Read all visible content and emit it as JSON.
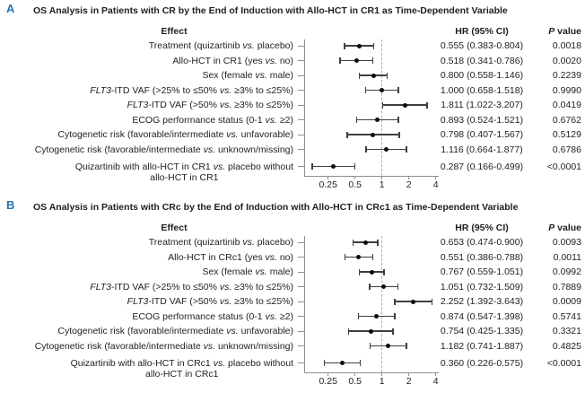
{
  "figure": {
    "background": "#ffffff",
    "text_color": "#1f1f1f",
    "panel_letter_color": "#2272b5",
    "axis_color": "#909090",
    "reference_line_color": "#b0b0b0",
    "errorbar_color": "#3f3f3f",
    "point_color": "#0d0d0d"
  },
  "chart_data": [
    {
      "type": "forest",
      "panel": "A",
      "title": "OS Analysis in Patients with CR by the End of Induction with Allo-HCT in CR1 as Time-Dependent Variable",
      "columns": {
        "effect": "Effect",
        "hr": "HR (95% CI)",
        "p_italic": "P",
        "p_rest": " value"
      },
      "x_scale": "log2",
      "x_ticks": [
        0.25,
        0.5,
        1,
        2,
        4
      ],
      "x_tick_labels": [
        "0.25",
        "0.5",
        "1",
        "2",
        "4"
      ],
      "reference_line": 1,
      "italic_tokens": [
        "FLT3",
        "vs."
      ],
      "rows": [
        {
          "effect": "Treatment (quizartinib vs. placebo)",
          "hr": 0.555,
          "ci_low": 0.383,
          "ci_high": 0.804,
          "hr_text": "0.555 (0.383-0.804)",
          "p_text": "0.0018"
        },
        {
          "effect": "Allo-HCT in CR1 (yes vs. no)",
          "hr": 0.518,
          "ci_low": 0.341,
          "ci_high": 0.786,
          "hr_text": "0.518 (0.341-0.786)",
          "p_text": "0.0020"
        },
        {
          "effect": "Sex (female vs. male)",
          "hr": 0.8,
          "ci_low": 0.558,
          "ci_high": 1.146,
          "hr_text": "0.800 (0.558-1.146)",
          "p_text": "0.2239"
        },
        {
          "effect": "FLT3-ITD VAF (>25% to ≤50% vs. ≥3% to ≤25%)",
          "hr": 1.0,
          "ci_low": 0.658,
          "ci_high": 1.518,
          "hr_text": "1.000 (0.658-1.518)",
          "p_text": "0.9990"
        },
        {
          "effect": "FLT3-ITD VAF (>50% vs. ≥3% to ≤25%)",
          "hr": 1.811,
          "ci_low": 1.022,
          "ci_high": 3.207,
          "hr_text": "1.811 (1.022-3.207)",
          "p_text": "0.0419"
        },
        {
          "effect": "ECOG performance status (0-1 vs. ≥2)",
          "hr": 0.893,
          "ci_low": 0.524,
          "ci_high": 1.521,
          "hr_text": "0.893 (0.524-1.521)",
          "p_text": "0.6762"
        },
        {
          "effect": "Cytogenetic risk (favorable/intermediate vs. unfavorable)",
          "hr": 0.798,
          "ci_low": 0.407,
          "ci_high": 1.567,
          "hr_text": "0.798 (0.407-1.567)",
          "p_text": "0.5129"
        },
        {
          "effect": "Cytogenetic risk (favorable/intermediate vs. unknown/missing)",
          "hr": 1.116,
          "ci_low": 0.664,
          "ci_high": 1.877,
          "hr_text": "1.116 (0.664-1.877)",
          "p_text": "0.6786"
        },
        {
          "effect": "Quizartinib with allo-HCT in CR1 vs. placebo without",
          "effect_line2": "allo-HCT in CR1",
          "hr": 0.287,
          "ci_low": 0.166,
          "ci_high": 0.499,
          "hr_text": "0.287 (0.166-0.499)",
          "p_text": "<0.0001"
        }
      ]
    },
    {
      "type": "forest",
      "panel": "B",
      "title": "OS Analysis in Patients with CRc by the End of Induction with Allo-HCT in CRc1 as Time-Dependent Variable",
      "columns": {
        "effect": "Effect",
        "hr": "HR (95% CI)",
        "p_italic": "P",
        "p_rest": " value"
      },
      "x_scale": "log2",
      "x_ticks": [
        0.25,
        0.5,
        1,
        2,
        4
      ],
      "x_tick_labels": [
        "0.25",
        "0.5",
        "1",
        "2",
        "4"
      ],
      "reference_line": 1,
      "italic_tokens": [
        "FLT3",
        "vs."
      ],
      "rows": [
        {
          "effect": "Treatment (quizartinib vs. placebo)",
          "hr": 0.653,
          "ci_low": 0.474,
          "ci_high": 0.9,
          "hr_text": "0.653 (0.474-0.900)",
          "p_text": "0.0093"
        },
        {
          "effect": "Allo-HCT in CRc1 (yes vs. no)",
          "hr": 0.551,
          "ci_low": 0.386,
          "ci_high": 0.788,
          "hr_text": "0.551 (0.386-0.788)",
          "p_text": "0.0011"
        },
        {
          "effect": "Sex (female vs. male)",
          "hr": 0.767,
          "ci_low": 0.559,
          "ci_high": 1.051,
          "hr_text": "0.767 (0.559-1.051)",
          "p_text": "0.0992"
        },
        {
          "effect": "FLT3-ITD VAF (>25% to ≤50% vs. ≥3% to ≤25%)",
          "hr": 1.051,
          "ci_low": 0.732,
          "ci_high": 1.509,
          "hr_text": "1.051 (0.732-1.509)",
          "p_text": "0.7889"
        },
        {
          "effect": "FLT3-ITD VAF (>50% vs. ≥3% to ≤25%)",
          "hr": 2.252,
          "ci_low": 1.392,
          "ci_high": 3.643,
          "hr_text": "2.252 (1.392-3.643)",
          "p_text": "0.0009"
        },
        {
          "effect": "ECOG performance status (0-1 vs. ≥2)",
          "hr": 0.874,
          "ci_low": 0.547,
          "ci_high": 1.398,
          "hr_text": "0.874 (0.547-1.398)",
          "p_text": "0.5741"
        },
        {
          "effect": "Cytogenetic risk (favorable/intermediate vs. unfavorable)",
          "hr": 0.754,
          "ci_low": 0.425,
          "ci_high": 1.335,
          "hr_text": "0.754 (0.425-1.335)",
          "p_text": "0.3321"
        },
        {
          "effect": "Cytogenetic risk (favorable/intermediate vs. unknown/missing)",
          "hr": 1.182,
          "ci_low": 0.741,
          "ci_high": 1.887,
          "hr_text": "1.182 (0.741-1.887)",
          "p_text": "0.4825"
        },
        {
          "effect": "Quizartinib with allo-HCT in CRc1 vs. placebo without",
          "effect_line2": "allo-HCT in CRc1",
          "hr": 0.36,
          "ci_low": 0.226,
          "ci_high": 0.575,
          "hr_text": "0.360 (0.226-0.575)",
          "p_text": "<0.0001"
        }
      ]
    }
  ]
}
